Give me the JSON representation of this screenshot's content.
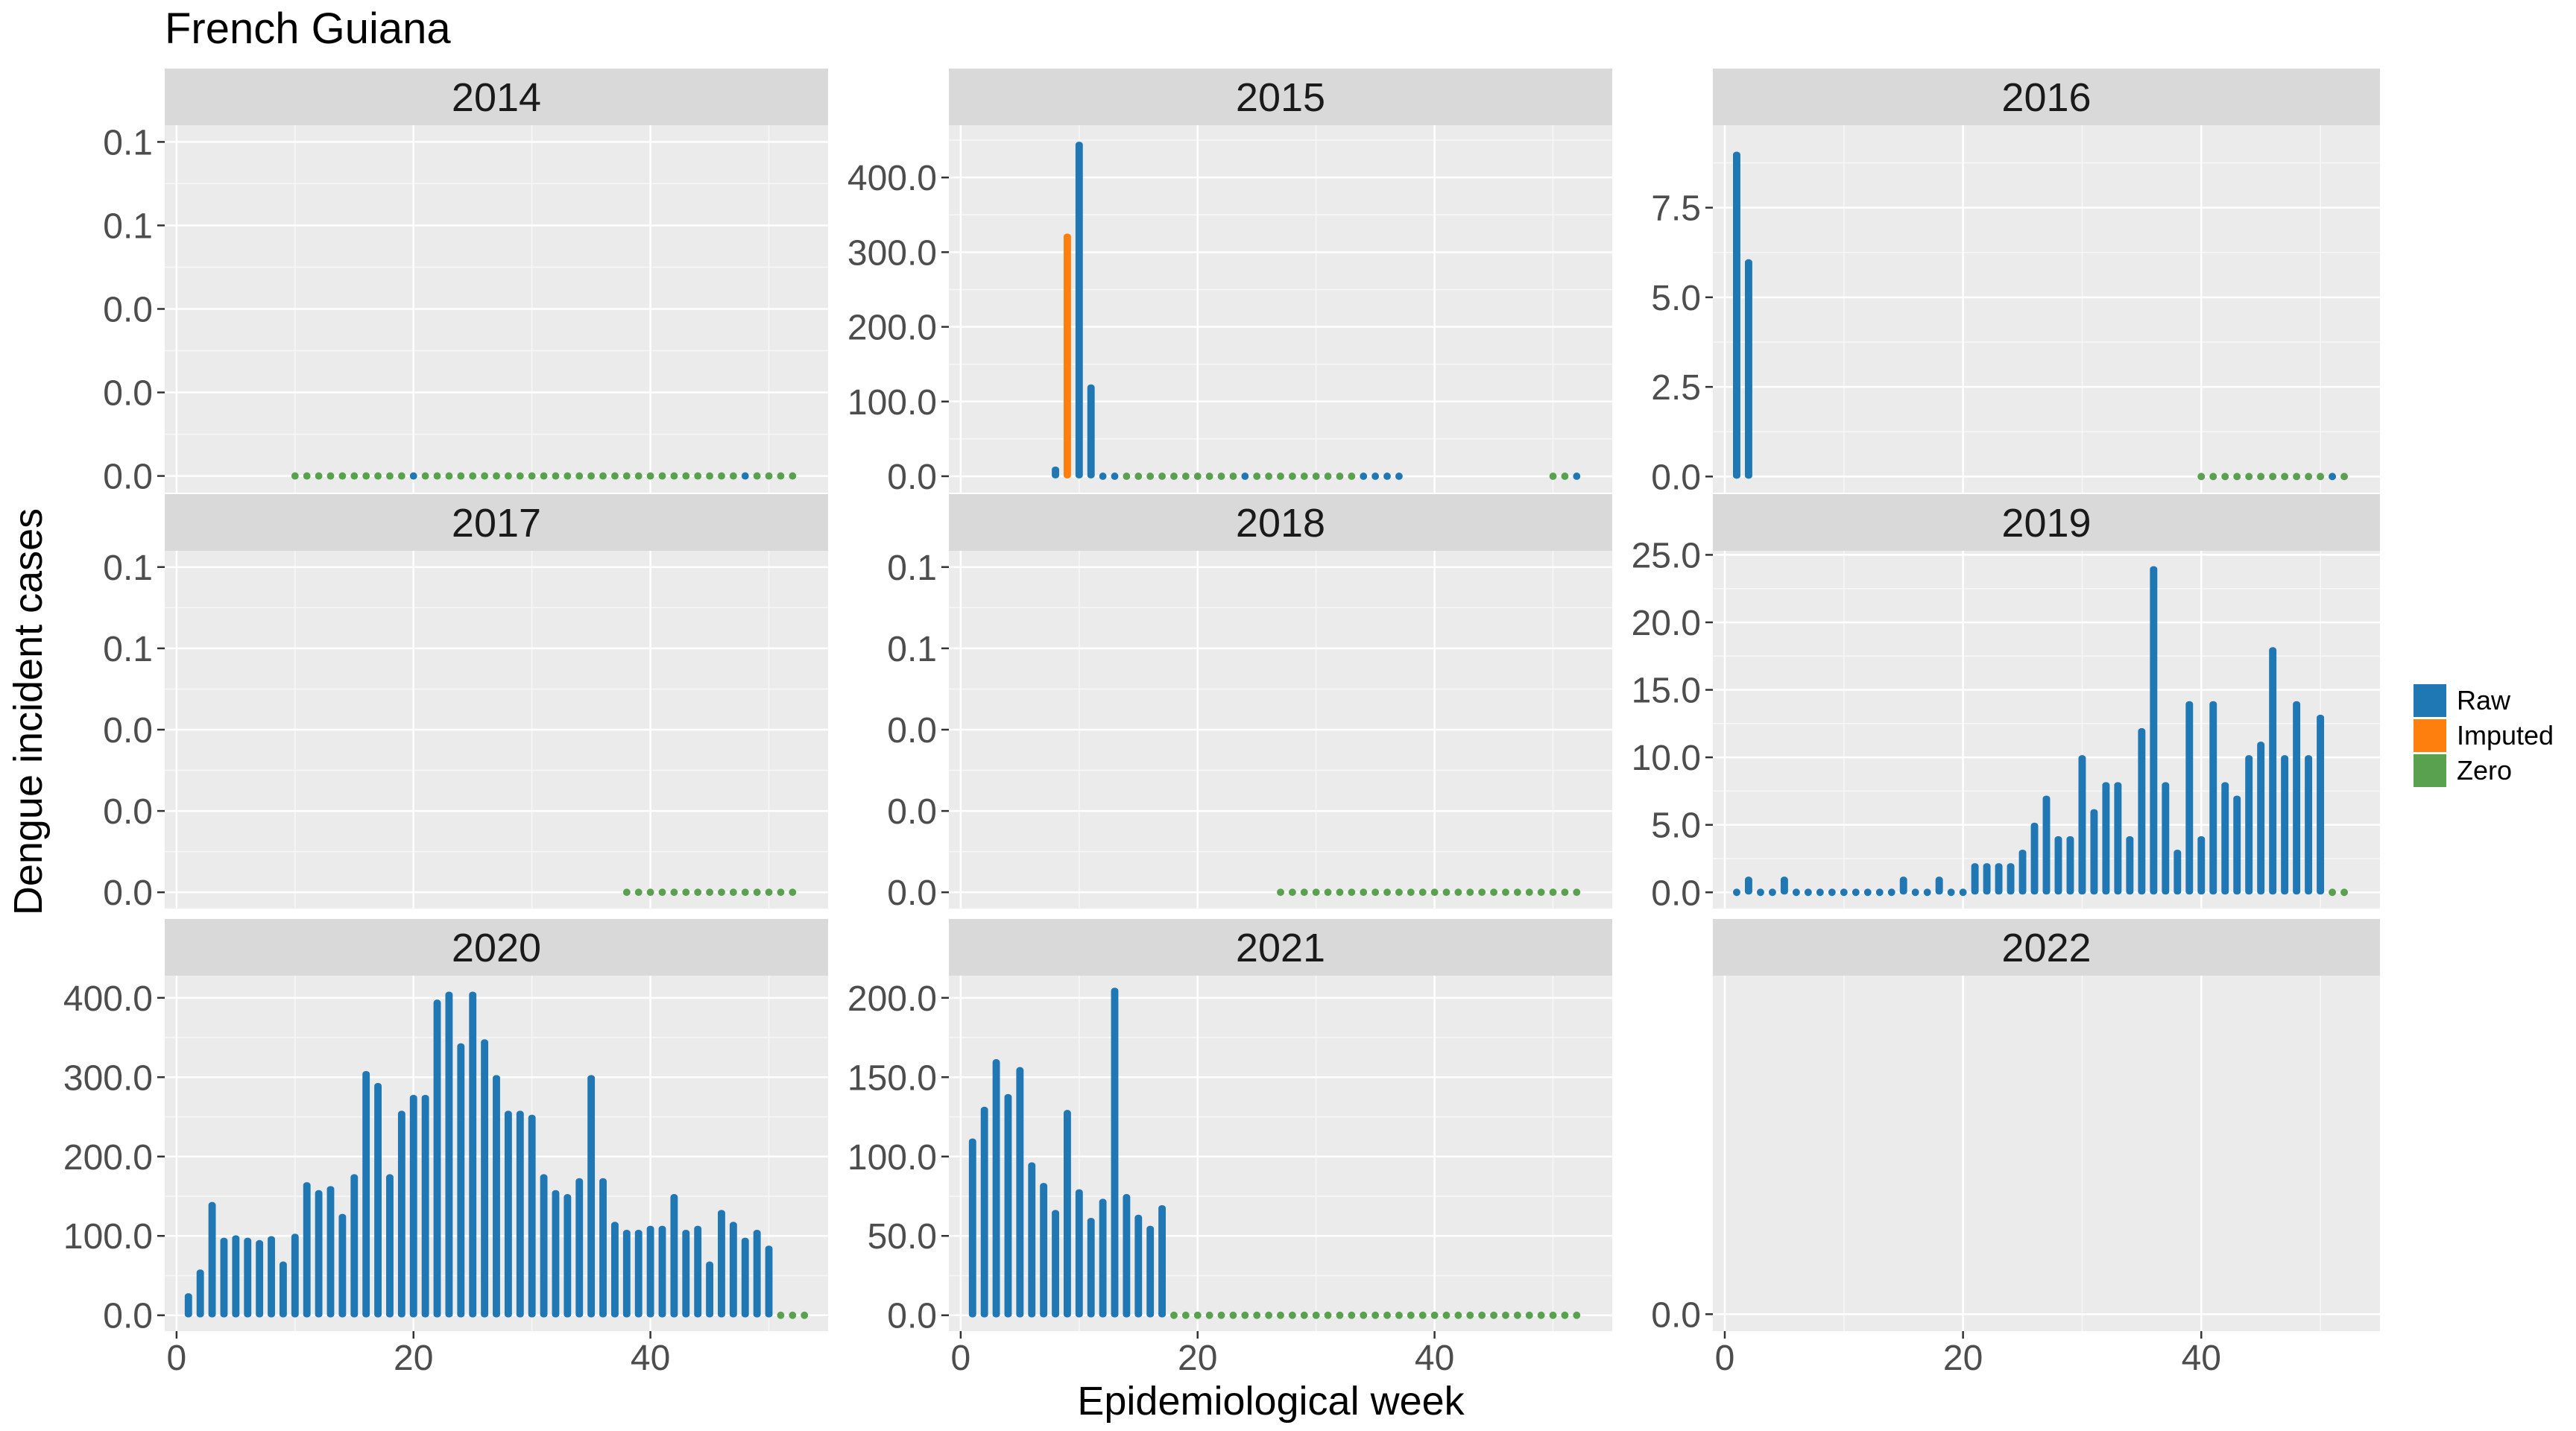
{
  "title": "French Guiana",
  "xlabel": "Epidemiological week",
  "ylabel": "Dengue incident cases",
  "legend": {
    "position": "right",
    "items": [
      {
        "label": "Raw",
        "color": "#1f77b4"
      },
      {
        "label": "Imputed",
        "color": "#ff7f0e"
      },
      {
        "label": "Zero",
        "color": "#59a14f"
      }
    ]
  },
  "x_ticks": [
    "0",
    "20",
    "40"
  ],
  "chart_data": {
    "type": "bar",
    "facets": "year",
    "xlim": [
      -1,
      55
    ],
    "x_tick_values": [
      0,
      20,
      40
    ],
    "grid": true,
    "panels": [
      {
        "year": "2014",
        "ylim": [
          -0.005,
          0.105
        ],
        "y_tick_values": [
          0,
          0.025,
          0.05,
          0.075,
          0.1
        ],
        "y_tick_labels": [
          "0.0",
          "0.0",
          "0.0",
          "0.1",
          "0.1"
        ],
        "raw": [
          [
            20,
            0
          ],
          [
            48,
            0
          ]
        ],
        "imputed": [],
        "zero_weeks": [
          10,
          11,
          12,
          13,
          14,
          15,
          16,
          17,
          18,
          19,
          21,
          22,
          23,
          24,
          25,
          26,
          27,
          28,
          29,
          30,
          31,
          32,
          33,
          34,
          35,
          36,
          37,
          38,
          39,
          40,
          41,
          42,
          43,
          44,
          45,
          46,
          47,
          49,
          50,
          51,
          52
        ]
      },
      {
        "year": "2015",
        "ylim": [
          -22,
          470
        ],
        "y_tick_values": [
          0,
          100,
          200,
          300,
          400
        ],
        "y_tick_labels": [
          "0.0",
          "100.0",
          "200.0",
          "300.0",
          "400.0"
        ],
        "raw": [
          [
            8,
            10
          ],
          [
            10,
            445
          ],
          [
            11,
            120
          ],
          [
            12,
            0
          ],
          [
            13,
            0
          ],
          [
            24,
            0
          ],
          [
            34,
            0
          ],
          [
            35,
            0
          ],
          [
            36,
            0
          ],
          [
            37,
            0
          ],
          [
            52,
            0
          ]
        ],
        "imputed": [
          [
            9,
            322
          ]
        ],
        "zero_weeks": [
          14,
          15,
          16,
          17,
          18,
          19,
          20,
          21,
          22,
          23,
          25,
          26,
          27,
          28,
          29,
          30,
          31,
          32,
          33,
          50,
          51
        ]
      },
      {
        "year": "2016",
        "ylim": [
          -0.45,
          9.8
        ],
        "y_tick_values": [
          0,
          2.5,
          5,
          7.5
        ],
        "y_tick_labels": [
          "0.0",
          "2.5",
          "5.0",
          "7.5"
        ],
        "raw": [
          [
            1,
            9
          ],
          [
            2,
            6
          ],
          [
            51,
            0
          ]
        ],
        "imputed": [],
        "zero_weeks": [
          40,
          41,
          42,
          43,
          44,
          45,
          46,
          47,
          48,
          49,
          50,
          52
        ]
      },
      {
        "year": "2017",
        "ylim": [
          -0.005,
          0.105
        ],
        "y_tick_values": [
          0,
          0.025,
          0.05,
          0.075,
          0.1
        ],
        "y_tick_labels": [
          "0.0",
          "0.0",
          "0.0",
          "0.1",
          "0.1"
        ],
        "raw": [],
        "imputed": [],
        "zero_weeks": [
          38,
          39,
          40,
          41,
          42,
          43,
          44,
          45,
          46,
          47,
          48,
          49,
          50,
          51,
          52
        ]
      },
      {
        "year": "2018",
        "ylim": [
          -0.005,
          0.105
        ],
        "y_tick_values": [
          0,
          0.025,
          0.05,
          0.075,
          0.1
        ],
        "y_tick_labels": [
          "0.0",
          "0.0",
          "0.0",
          "0.1",
          "0.1"
        ],
        "raw": [],
        "imputed": [],
        "zero_weeks": [
          27,
          28,
          29,
          30,
          31,
          32,
          33,
          34,
          35,
          36,
          37,
          38,
          39,
          40,
          41,
          42,
          43,
          44,
          45,
          46,
          47,
          48,
          49,
          50,
          51,
          52
        ]
      },
      {
        "year": "2019",
        "ylim": [
          -1.2,
          25.3
        ],
        "y_tick_values": [
          0,
          5,
          10,
          15,
          20,
          25
        ],
        "y_tick_labels": [
          "0.0",
          "5.0",
          "10.0",
          "15.0",
          "20.0",
          "25.0"
        ],
        "raw": [
          [
            1,
            0
          ],
          [
            2,
            1
          ],
          [
            3,
            0
          ],
          [
            4,
            0
          ],
          [
            5,
            1
          ],
          [
            6,
            0
          ],
          [
            7,
            0
          ],
          [
            8,
            0
          ],
          [
            9,
            0
          ],
          [
            10,
            0
          ],
          [
            11,
            0
          ],
          [
            12,
            0
          ],
          [
            13,
            0
          ],
          [
            14,
            0
          ],
          [
            15,
            1
          ],
          [
            16,
            0
          ],
          [
            17,
            0
          ],
          [
            18,
            1
          ],
          [
            19,
            0
          ],
          [
            20,
            0
          ],
          [
            21,
            2
          ],
          [
            22,
            2
          ],
          [
            23,
            2
          ],
          [
            24,
            2
          ],
          [
            25,
            3
          ],
          [
            26,
            5
          ],
          [
            27,
            7
          ],
          [
            28,
            4
          ],
          [
            29,
            4
          ],
          [
            30,
            10
          ],
          [
            31,
            6
          ],
          [
            32,
            8
          ],
          [
            33,
            8
          ],
          [
            34,
            4
          ],
          [
            35,
            12
          ],
          [
            36,
            24
          ],
          [
            37,
            8
          ],
          [
            38,
            3
          ],
          [
            39,
            14
          ],
          [
            40,
            4
          ],
          [
            41,
            14
          ],
          [
            42,
            8
          ],
          [
            43,
            7
          ],
          [
            44,
            10
          ],
          [
            45,
            11
          ],
          [
            46,
            18
          ],
          [
            47,
            10
          ],
          [
            48,
            14
          ],
          [
            49,
            10
          ],
          [
            50,
            13
          ]
        ],
        "imputed": [],
        "zero_weeks": [
          51,
          52
        ]
      },
      {
        "year": "2020",
        "ylim": [
          -20,
          428
        ],
        "y_tick_values": [
          0,
          100,
          200,
          300,
          400
        ],
        "y_tick_labels": [
          "0.0",
          "100.0",
          "200.0",
          "300.0",
          "400.0"
        ],
        "raw": [
          [
            1,
            25
          ],
          [
            2,
            55
          ],
          [
            3,
            140
          ],
          [
            4,
            95
          ],
          [
            5,
            98
          ],
          [
            6,
            95
          ],
          [
            7,
            92
          ],
          [
            8,
            97
          ],
          [
            9,
            65
          ],
          [
            10,
            100
          ],
          [
            11,
            165
          ],
          [
            12,
            155
          ],
          [
            13,
            160
          ],
          [
            14,
            125
          ],
          [
            15,
            175
          ],
          [
            16,
            305
          ],
          [
            17,
            290
          ],
          [
            18,
            175
          ],
          [
            19,
            255
          ],
          [
            20,
            275
          ],
          [
            21,
            275
          ],
          [
            22,
            395
          ],
          [
            23,
            405
          ],
          [
            24,
            340
          ],
          [
            25,
            405
          ],
          [
            26,
            345
          ],
          [
            27,
            300
          ],
          [
            28,
            255
          ],
          [
            29,
            255
          ],
          [
            30,
            250
          ],
          [
            31,
            175
          ],
          [
            32,
            155
          ],
          [
            33,
            150
          ],
          [
            34,
            170
          ],
          [
            35,
            300
          ],
          [
            36,
            170
          ],
          [
            37,
            115
          ],
          [
            38,
            105
          ],
          [
            39,
            105
          ],
          [
            40,
            110
          ],
          [
            41,
            110
          ],
          [
            42,
            150
          ],
          [
            43,
            105
          ],
          [
            44,
            110
          ],
          [
            45,
            65
          ],
          [
            46,
            130
          ],
          [
            47,
            115
          ],
          [
            48,
            95
          ],
          [
            49,
            105
          ],
          [
            50,
            85
          ]
        ],
        "imputed": [],
        "zero_weeks": [
          51,
          52,
          53
        ]
      },
      {
        "year": "2021",
        "ylim": [
          -10,
          214
        ],
        "y_tick_values": [
          0,
          50,
          100,
          150,
          200
        ],
        "y_tick_labels": [
          "0.0",
          "50.0",
          "100.0",
          "150.0",
          "200.0"
        ],
        "raw": [
          [
            1,
            110
          ],
          [
            2,
            130
          ],
          [
            3,
            160
          ],
          [
            4,
            138
          ],
          [
            5,
            155
          ],
          [
            6,
            95
          ],
          [
            7,
            82
          ],
          [
            8,
            65
          ],
          [
            9,
            128
          ],
          [
            10,
            78
          ],
          [
            11,
            60
          ],
          [
            12,
            72
          ],
          [
            13,
            205
          ],
          [
            14,
            75
          ],
          [
            15,
            62
          ],
          [
            16,
            55
          ],
          [
            17,
            68
          ]
        ],
        "imputed": [],
        "zero_weeks": [
          18,
          19,
          20,
          21,
          22,
          23,
          24,
          25,
          26,
          27,
          28,
          29,
          30,
          31,
          32,
          33,
          34,
          35,
          36,
          37,
          38,
          39,
          40,
          41,
          42,
          43,
          44,
          45,
          46,
          47,
          48,
          49,
          50,
          51,
          52
        ]
      },
      {
        "year": "2022",
        "ylim": [
          -0.05,
          1
        ],
        "y_tick_values": [
          0
        ],
        "y_tick_labels": [
          "0.0"
        ],
        "raw": [],
        "imputed": [],
        "zero_weeks": []
      }
    ]
  }
}
